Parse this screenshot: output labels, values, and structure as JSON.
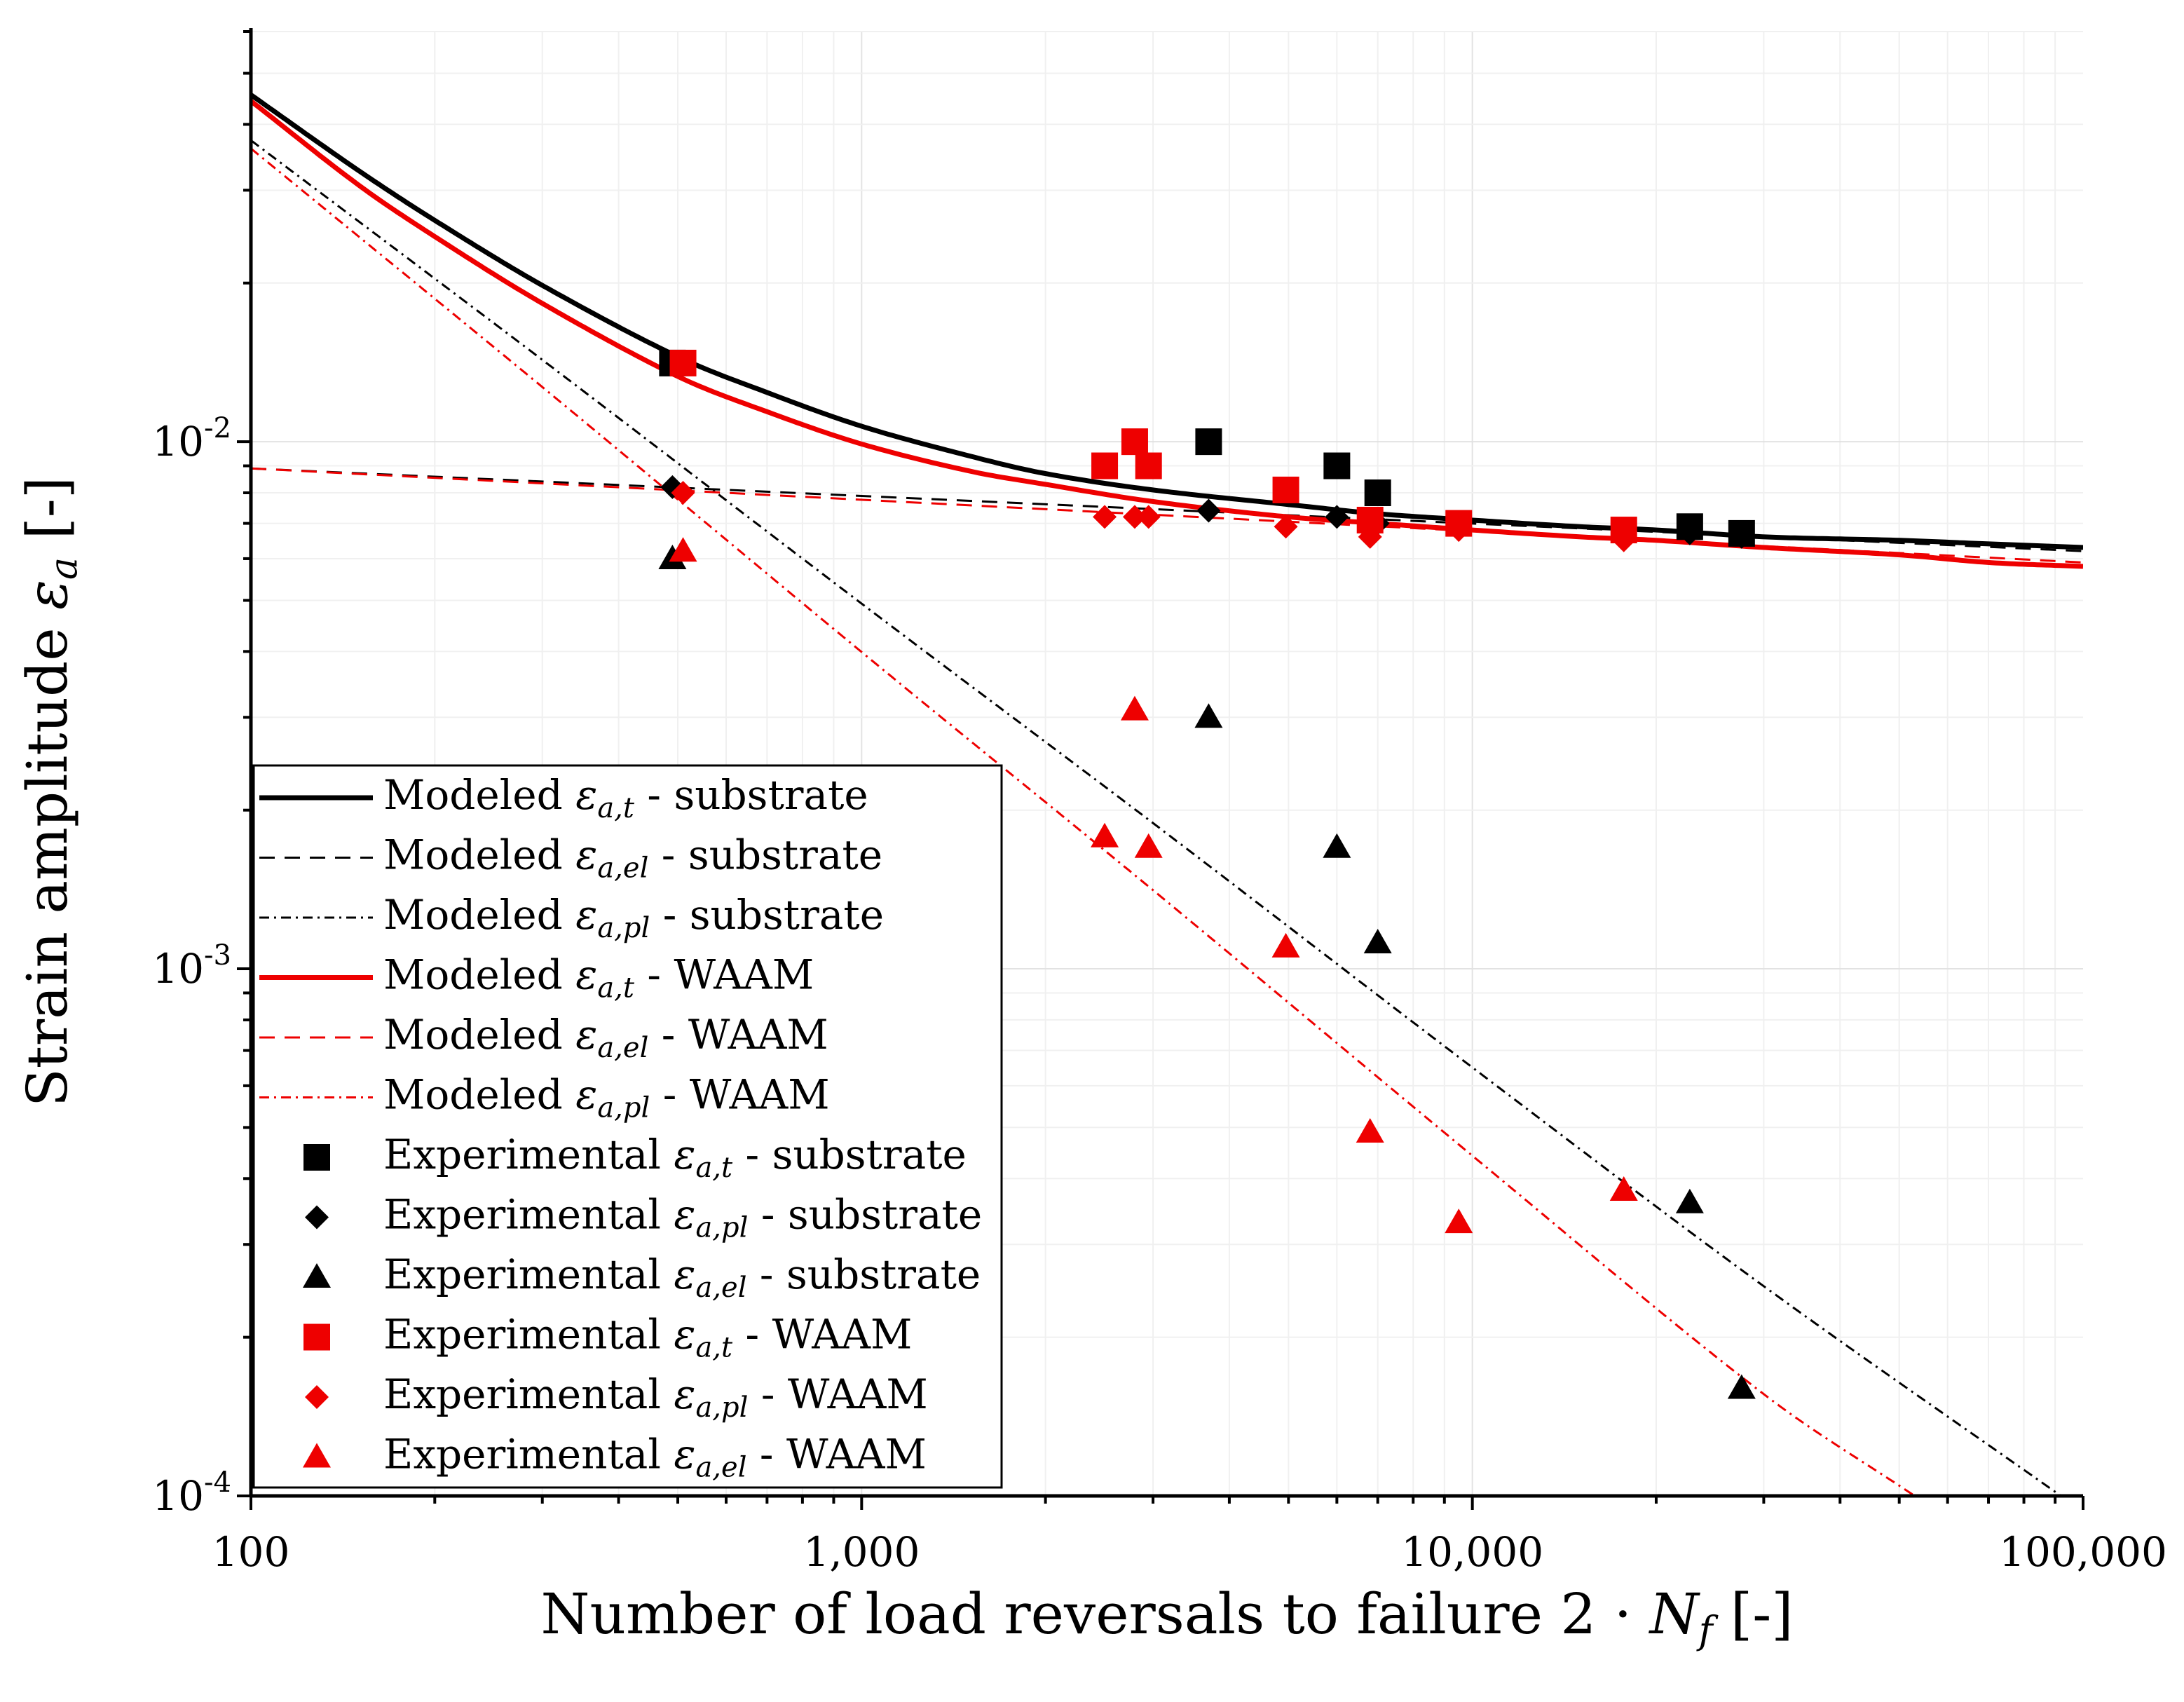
{
  "chart_data": {
    "type": "line",
    "xscale": "log",
    "yscale": "log",
    "xlabel": "Number of load reversals to failure 2 · N_f [-]",
    "ylabel": "Strain amplitude ε_a [-]",
    "xlim": [
      100,
      100000
    ],
    "ylim": [
      0.0001,
      0.06
    ],
    "grid": true,
    "legend_position": "bottom-left",
    "x_ticks": [
      {
        "value": 100,
        "label": "100"
      },
      {
        "value": 1000,
        "label": "1,000"
      },
      {
        "value": 10000,
        "label": "10,000"
      },
      {
        "value": 100000,
        "label": "100,000"
      }
    ],
    "y_ticks": [
      {
        "value": 0.0001,
        "base": "10",
        "exp": "-4"
      },
      {
        "value": 0.001,
        "base": "10",
        "exp": "-3"
      },
      {
        "value": 0.01,
        "base": "10",
        "exp": "-2"
      }
    ],
    "series": [
      {
        "name": "Modeled ε_a,t - substrate",
        "kind": "line",
        "color": "#000000",
        "dash": "solid",
        "width": 7,
        "x": [
          100,
          150,
          200,
          300,
          500,
          700,
          1000,
          1500,
          2000,
          3000,
          5000,
          7000,
          10000,
          15000,
          20000,
          30000,
          50000,
          70000,
          100000
        ],
        "y": [
          0.0455,
          0.0327,
          0.0263,
          0.0198,
          0.0145,
          0.0124,
          0.0107,
          0.0094,
          0.0087,
          0.0081,
          0.0076,
          0.0073,
          0.0071,
          0.0069,
          0.0068,
          0.0066,
          0.0065,
          0.0064,
          0.0063
        ]
      },
      {
        "name": "Modeled ε_a,el - substrate",
        "kind": "line",
        "color": "#000000",
        "dash": "dashed",
        "width": 3,
        "x": [
          100,
          100000
        ],
        "y": [
          0.0089,
          0.0062
        ]
      },
      {
        "name": "Modeled ε_a,pl - substrate",
        "kind": "line",
        "color": "#000000",
        "dash": "dashdot",
        "width": 3,
        "x": [
          100,
          300,
          1000,
          3000,
          10000,
          30000,
          92000
        ],
        "y": [
          0.0373,
          0.0143,
          0.00493,
          0.00189,
          0.00065,
          0.00025,
          0.0001
        ]
      },
      {
        "name": "Modeled ε_a,t - WAAM",
        "kind": "line",
        "color": "#ee0000",
        "dash": "solid",
        "width": 7,
        "x": [
          100,
          150,
          200,
          300,
          500,
          700,
          1000,
          1500,
          2000,
          3000,
          5000,
          7000,
          10000,
          15000,
          20000,
          30000,
          50000,
          70000,
          100000
        ],
        "y": [
          0.0443,
          0.0307,
          0.0245,
          0.0183,
          0.0133,
          0.0114,
          0.0099,
          0.0088,
          0.0083,
          0.0077,
          0.0072,
          0.007,
          0.0068,
          0.0066,
          0.0065,
          0.0063,
          0.0061,
          0.0059,
          0.0058
        ]
      },
      {
        "name": "Modeled ε_a,el - WAAM",
        "kind": "line",
        "color": "#ee0000",
        "dash": "dashed",
        "width": 3,
        "x": [
          100,
          100000
        ],
        "y": [
          0.0089,
          0.0059
        ]
      },
      {
        "name": "Modeled ε_a,pl - WAAM",
        "kind": "line",
        "color": "#ee0000",
        "dash": "dashdot",
        "width": 3,
        "x": [
          100,
          300,
          1000,
          3000,
          10000,
          30000,
          53000
        ],
        "y": [
          0.036,
          0.0127,
          0.00399,
          0.00141,
          0.000442,
          0.000156,
          0.0001
        ]
      },
      {
        "name": "Experimental ε_a,t - substrate",
        "kind": "scatter",
        "marker": "square",
        "color": "#000000",
        "x": [
          490,
          3700,
          6000,
          7000,
          22700,
          27600
        ],
        "y": [
          0.0141,
          0.01,
          0.009,
          0.008,
          0.0069,
          0.0067
        ]
      },
      {
        "name": "Experimental ε_a,pl - substrate",
        "kind": "scatter",
        "marker": "diamond",
        "color": "#000000",
        "x": [
          490,
          3700,
          6000,
          7000,
          22700,
          27600
        ],
        "y": [
          0.0082,
          0.0074,
          0.0072,
          0.007,
          0.0067,
          0.0066
        ]
      },
      {
        "name": "Experimental ε_a,el - substrate",
        "kind": "scatter",
        "marker": "triangle",
        "color": "#000000",
        "x": [
          490,
          3700,
          6000,
          7000,
          22700,
          27600
        ],
        "y": [
          0.006,
          0.003,
          0.0017,
          0.00112,
          0.00036,
          0.00016
        ]
      },
      {
        "name": "Experimental ε_a,t - WAAM",
        "kind": "scatter",
        "marker": "square",
        "color": "#ee0000",
        "x": [
          510,
          2500,
          2800,
          2950,
          4950,
          6800,
          9500,
          17700
        ],
        "y": [
          0.0141,
          0.009,
          0.01,
          0.009,
          0.0081,
          0.0071,
          0.007,
          0.0068
        ]
      },
      {
        "name": "Experimental ε_a,pl - WAAM",
        "kind": "scatter",
        "marker": "diamond",
        "color": "#ee0000",
        "x": [
          510,
          2500,
          2800,
          2950,
          4950,
          6800,
          9500,
          17700
        ],
        "y": [
          0.008,
          0.0072,
          0.0072,
          0.0072,
          0.0069,
          0.0066,
          0.0068,
          0.0065
        ]
      },
      {
        "name": "Experimental ε_a,el - WAAM",
        "kind": "scatter",
        "marker": "triangle",
        "color": "#ee0000",
        "x": [
          510,
          2500,
          2800,
          2950,
          4950,
          6800,
          9500,
          17700
        ],
        "y": [
          0.0062,
          0.00178,
          0.0031,
          0.0017,
          0.0011,
          0.00049,
          0.00033,
          0.00038
        ]
      }
    ],
    "legend": [
      {
        "type": "line",
        "color": "#000000",
        "dash": "solid",
        "prefix": "Modeled ",
        "sub": "a,t",
        "suffix": " - substrate"
      },
      {
        "type": "line",
        "color": "#000000",
        "dash": "dashed",
        "prefix": "Modeled ",
        "sub": "a,el",
        "suffix": " - substrate"
      },
      {
        "type": "line",
        "color": "#000000",
        "dash": "dashdot",
        "prefix": "Modeled ",
        "sub": "a,pl",
        "suffix": " - substrate"
      },
      {
        "type": "line",
        "color": "#ee0000",
        "dash": "solid",
        "prefix": "Modeled ",
        "sub": "a,t",
        "suffix": " - WAAM"
      },
      {
        "type": "line",
        "color": "#ee0000",
        "dash": "dashed",
        "prefix": "Modeled ",
        "sub": "a,el",
        "suffix": " - WAAM"
      },
      {
        "type": "line",
        "color": "#ee0000",
        "dash": "dashdot",
        "prefix": "Modeled ",
        "sub": "a,pl",
        "suffix": " - WAAM"
      },
      {
        "type": "square",
        "color": "#000000",
        "prefix": "Experimental ",
        "sub": "a,t",
        "suffix": " - substrate"
      },
      {
        "type": "diamond",
        "color": "#000000",
        "prefix": "Experimental ",
        "sub": "a,pl",
        "suffix": " - substrate"
      },
      {
        "type": "triangle",
        "color": "#000000",
        "prefix": "Experimental ",
        "sub": "a,el",
        "suffix": " - substrate"
      },
      {
        "type": "square",
        "color": "#ee0000",
        "prefix": "Experimental ",
        "sub": "a,t",
        "suffix": " - WAAM"
      },
      {
        "type": "diamond",
        "color": "#ee0000",
        "prefix": "Experimental ",
        "sub": "a,pl",
        "suffix": " - WAAM"
      },
      {
        "type": "triangle",
        "color": "#ee0000",
        "prefix": "Experimental ",
        "sub": "a,el",
        "suffix": " - WAAM"
      }
    ]
  }
}
